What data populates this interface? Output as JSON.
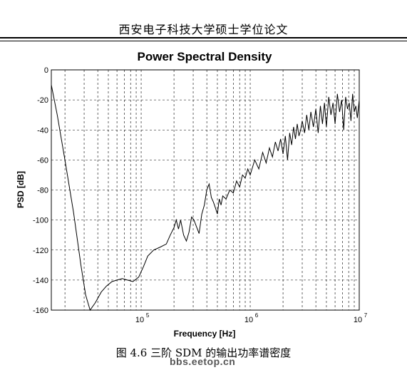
{
  "page": {
    "header": "西安电子科技大学硕士学位论文",
    "caption": "图 4.6  三阶 SDM 的输出功率谱密度",
    "watermark": "bbs.eetop.cn"
  },
  "chart_data": {
    "type": "line",
    "title": "Power Spectral Density",
    "xlabel": "Frequency [Hz]",
    "ylabel": "PSD [dB]",
    "x_scale": "log",
    "xlim": [
      15000,
      10000000
    ],
    "ylim": [
      -160,
      0
    ],
    "grid": true,
    "line_color": "#000000",
    "y_ticks": [
      "0",
      "-20",
      "-40",
      "-60",
      "-80",
      "-100",
      "-120",
      "-140",
      "-160"
    ],
    "x_ticks": [
      {
        "value": 100000,
        "base": "10",
        "exp": "5"
      },
      {
        "value": 1000000,
        "base": "10",
        "exp": "6"
      },
      {
        "value": 10000000,
        "base": "10",
        "exp": "7"
      }
    ],
    "series": [
      {
        "x": [
          15000,
          17000,
          20000,
          24000,
          28000,
          31000,
          34000,
          38000,
          43000,
          48000,
          54000,
          60000,
          67000,
          75000,
          84000,
          95000,
          105000,
          115000,
          130000,
          150000,
          170000,
          185000,
          200000,
          210000,
          220000,
          230000,
          245000,
          260000,
          275000,
          290000,
          305000,
          320000,
          340000,
          360000,
          380000,
          400000,
          420000,
          440000,
          460000,
          480000,
          500000,
          520000,
          540000,
          560000,
          600000,
          650000,
          700000,
          750000,
          800000,
          850000,
          900000,
          950000,
          1000000,
          1100000,
          1200000,
          1300000,
          1400000,
          1500000,
          1600000,
          1700000,
          1800000,
          1900000,
          2000000,
          2100000,
          2200000,
          2300000,
          2400000,
          2500000,
          2600000,
          2700000,
          2800000,
          2900000,
          3000000,
          3150000,
          3300000,
          3450000,
          3600000,
          3800000,
          4000000,
          4200000,
          4400000,
          4600000,
          4800000,
          5000000,
          5250000,
          5500000,
          5750000,
          6000000,
          6300000,
          6600000,
          6900000,
          7200000,
          7500000,
          7800000,
          8100000,
          8400000,
          8700000,
          9000000,
          9300000,
          9600000,
          10000000
        ],
        "y": [
          -10,
          -30,
          -60,
          -95,
          -130,
          -150,
          -162,
          -155,
          -148,
          -144,
          -141,
          -140,
          -139,
          -140,
          -141,
          -138,
          -131,
          -124,
          -120,
          -118,
          -116,
          -110,
          -105,
          -100,
          -106,
          -100,
          -110,
          -114,
          -108,
          -98,
          -100,
          -104,
          -109,
          -96,
          -90,
          -80,
          -76,
          -85,
          -88,
          -92,
          -96,
          -86,
          -90,
          -84,
          -86,
          -80,
          -82,
          -74,
          -78,
          -70,
          -72,
          -66,
          -70,
          -60,
          -66,
          -55,
          -62,
          -52,
          -58,
          -48,
          -54,
          -46,
          -56,
          -44,
          -60,
          -42,
          -50,
          -38,
          -46,
          -36,
          -44,
          -40,
          -34,
          -42,
          -30,
          -40,
          -28,
          -38,
          -26,
          -42,
          -24,
          -36,
          -22,
          -38,
          -18,
          -30,
          -22,
          -36,
          -16,
          -28,
          -20,
          -40,
          -18,
          -26,
          -22,
          -34,
          -16,
          -28,
          -24,
          -32,
          -20
        ]
      }
    ]
  }
}
